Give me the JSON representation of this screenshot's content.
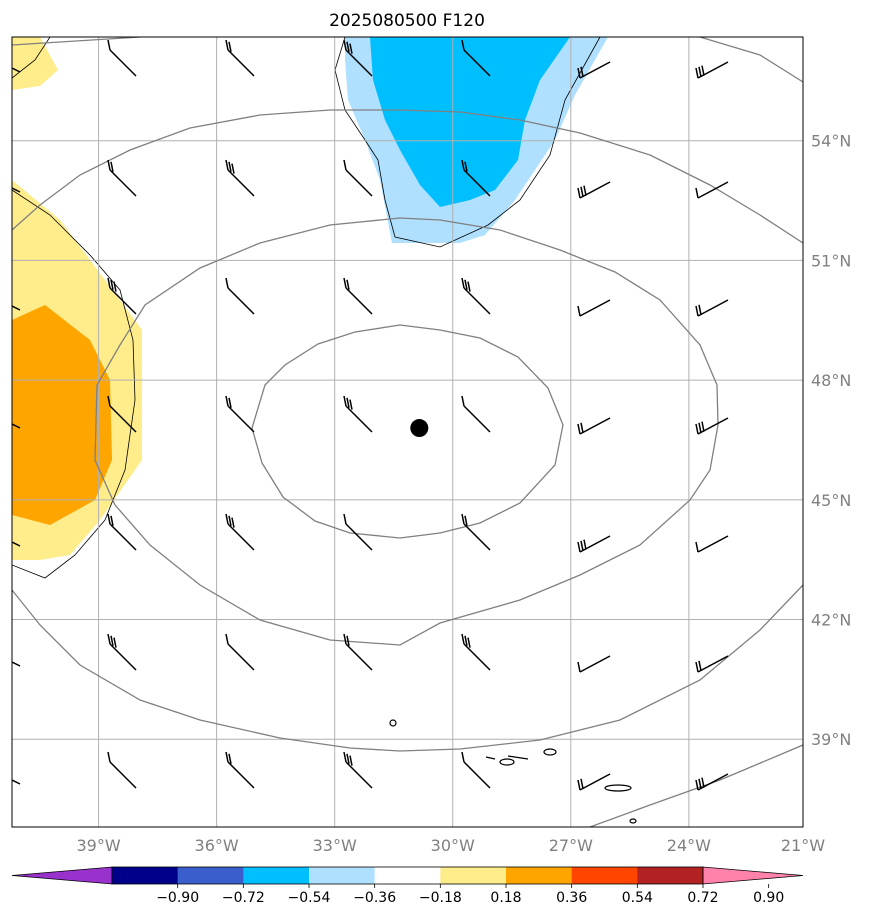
{
  "title": "2025080500 F120",
  "map": {
    "lon_range": [
      -41.2,
      -21.1
    ],
    "lat_range": [
      36.8,
      56.6
    ],
    "lat_ticks": [
      {
        "value": 39,
        "label": "39°N"
      },
      {
        "value": 42,
        "label": "42°N"
      },
      {
        "value": 45,
        "label": "45°N"
      },
      {
        "value": 48,
        "label": "48°N"
      },
      {
        "value": 51,
        "label": "51°N"
      },
      {
        "value": 54,
        "label": "54°N"
      }
    ],
    "lon_ticks": [
      {
        "value": -39,
        "label": "39°W"
      },
      {
        "value": -36,
        "label": "36°W"
      },
      {
        "value": -33,
        "label": "33°W"
      },
      {
        "value": -30,
        "label": "30°W"
      },
      {
        "value": -27,
        "label": "27°W"
      },
      {
        "value": -24,
        "label": "24°W"
      },
      {
        "value": -21,
        "label": "21°W"
      }
    ],
    "grid": true,
    "center_marker": {
      "lon": -30.85,
      "lat": 46.8
    }
  },
  "colorbar": {
    "colors": [
      "#9932cc",
      "#00008b",
      "#3a5fcd",
      "#00bfff",
      "#b0e0ff",
      "#ffffff",
      "#ffec8b",
      "#ffa500",
      "#ff4500",
      "#b22222",
      "#ff82ab"
    ],
    "tick_labels": [
      "−0.90",
      "−0.72",
      "−0.54",
      "−0.36",
      "−0.18",
      "0.18",
      "0.36",
      "0.54",
      "0.72",
      "0.90"
    ],
    "extend": "both"
  }
}
